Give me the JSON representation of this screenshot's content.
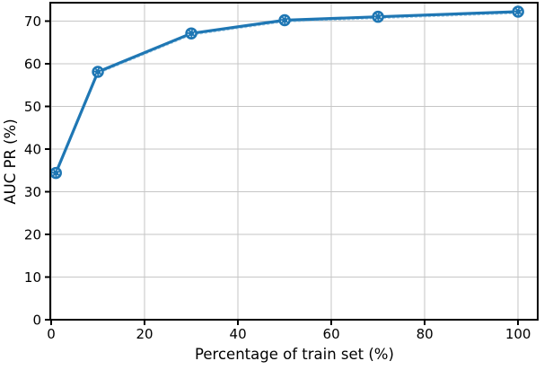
{
  "chart_data": {
    "type": "line",
    "title": "",
    "xlabel": "Percentage of train set (%)",
    "ylabel": "AUC PR (%)",
    "series": [
      {
        "x": [
          1,
          10,
          30,
          50,
          70,
          100
        ],
        "y": [
          34.4,
          58.1,
          67.1,
          70.2,
          71.0,
          72.2
        ],
        "line_style": "solid with light dotted overlay",
        "marker": "filled circle with white dotted inner ring"
      }
    ],
    "xticks": [
      0,
      20,
      40,
      60,
      80,
      100
    ],
    "yticks": [
      0,
      10,
      20,
      30,
      40,
      50,
      60,
      70
    ],
    "xlim": [
      -0.2,
      104.2
    ],
    "ylim": [
      0,
      74.3
    ],
    "grid": true,
    "legend": null,
    "colors": {
      "line": "#1f77b4",
      "overlay_dots": "#aed1e6",
      "marker_ring": "#ffffff",
      "grid": "#c6c6c6",
      "spine": "#000000",
      "text": "#000000",
      "background": "#ffffff"
    }
  }
}
